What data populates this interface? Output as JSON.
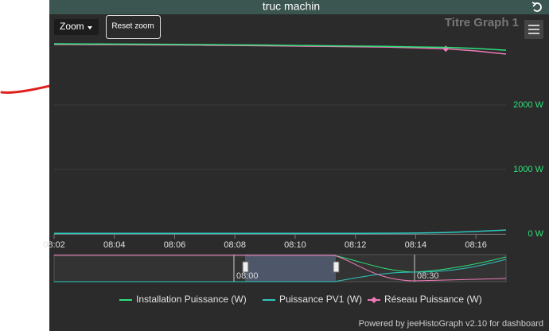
{
  "chart_data": {
    "type": "line",
    "title": "truc machin",
    "subtitle": "Titre Graph 1",
    "zoom_label": "Zoom",
    "reset_label": "Reset zoom",
    "credits": "Powered by jeeHistoGraph v2.10 for dashboard",
    "x": [
      "08:02",
      "08:03",
      "08:04",
      "08:05",
      "08:06",
      "08:07",
      "08:08",
      "08:09",
      "08:10",
      "08:11",
      "08:12",
      "08:13",
      "08:14",
      "08:15",
      "08:16",
      "08:17"
    ],
    "xlim": [
      "08:02",
      "08:17"
    ],
    "xticks": [
      "08:02",
      "08:04",
      "08:06",
      "08:08",
      "08:10",
      "08:12",
      "08:14",
      "08:16"
    ],
    "ylim": [
      0,
      3000
    ],
    "yticks": [
      {
        "value": 0,
        "label": "0 W"
      },
      {
        "value": 1000,
        "label": "1000 W"
      },
      {
        "value": 2000,
        "label": "2000 W"
      }
    ],
    "grid": true,
    "series": [
      {
        "name": "Installation Puissance (W)",
        "color": "#2ee17a",
        "values": [
          2950,
          2948,
          2946,
          2944,
          2942,
          2938,
          2934,
          2930,
          2925,
          2920,
          2915,
          2910,
          2902,
          2895,
          2878,
          2850
        ]
      },
      {
        "name": "Puissance PV1 (W)",
        "color": "#2ec8c0",
        "values": [
          10,
          10,
          10,
          10,
          10,
          10,
          10,
          10,
          10,
          10,
          10,
          11,
          14,
          22,
          38,
          60
        ]
      },
      {
        "name": "Réseau Puissance (W)",
        "color": "#f07ab8",
        "values": [
          2940,
          2938,
          2936,
          2934,
          2932,
          2928,
          2924,
          2920,
          2915,
          2910,
          2905,
          2899,
          2888,
          2873,
          2840,
          2790
        ],
        "marker_index": 13
      }
    ],
    "navigator_labels": [
      "08:00",
      "08:30"
    ]
  }
}
